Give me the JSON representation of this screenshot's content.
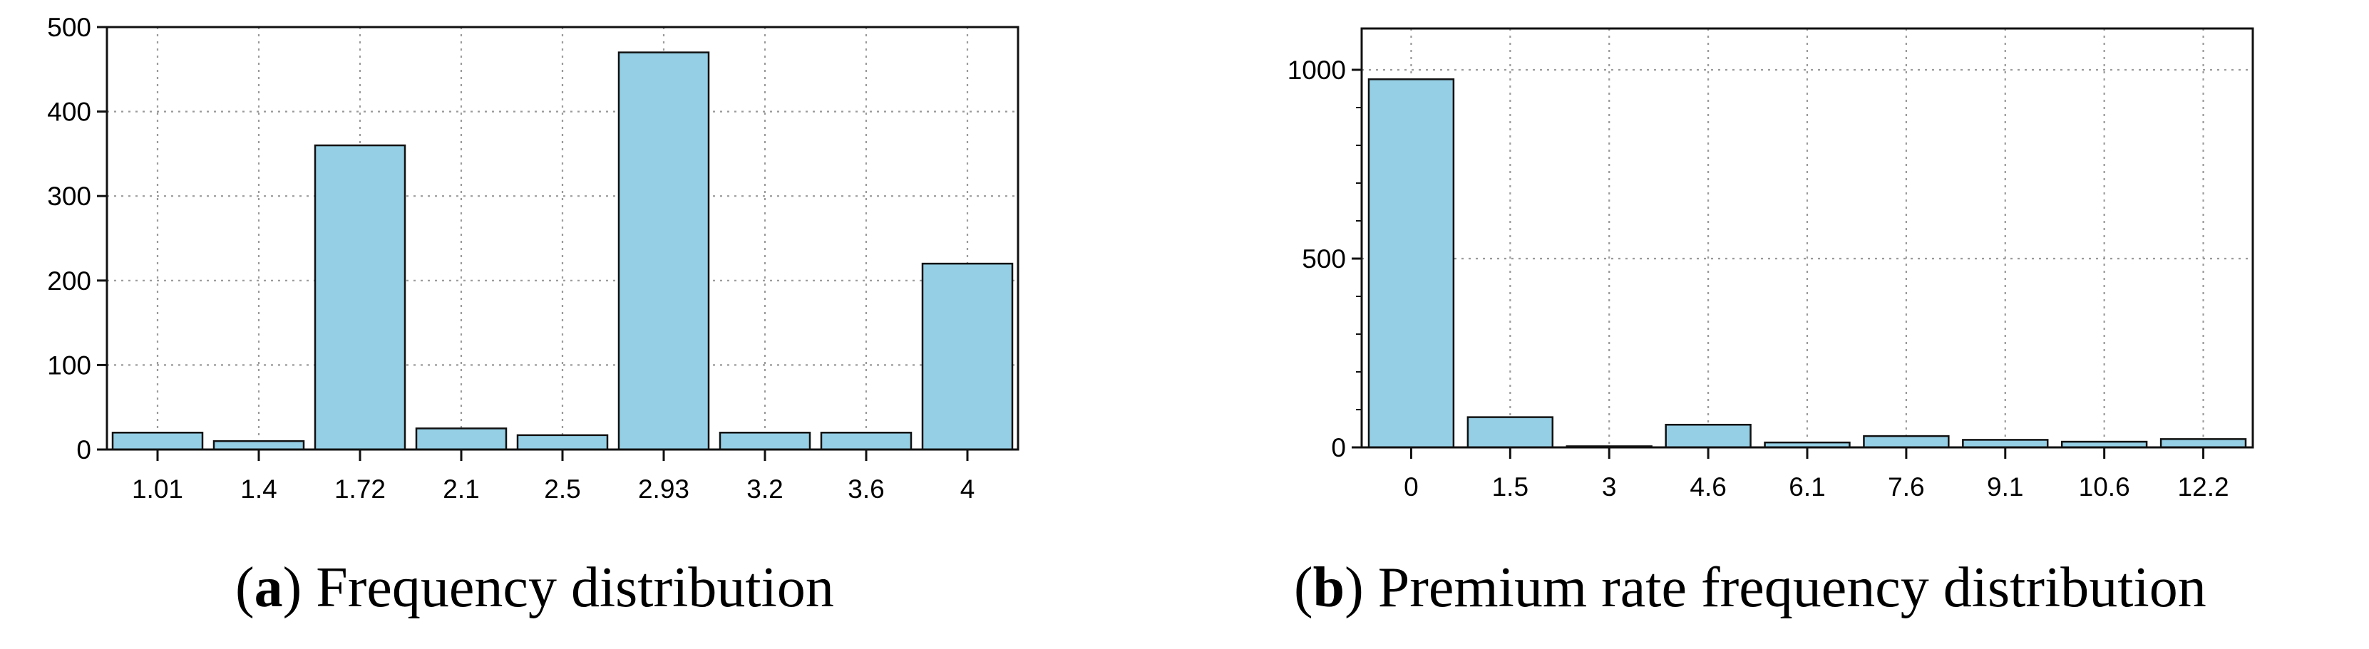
{
  "chart_data": [
    {
      "type": "bar",
      "categories": [
        "1.01",
        "1.4",
        "1.72",
        "2.1",
        "2.5",
        "2.93",
        "3.2",
        "3.6",
        "4"
      ],
      "values": [
        20,
        10,
        360,
        25,
        17,
        470,
        20,
        20,
        220
      ],
      "ylim": [
        0,
        500
      ],
      "yticks": [
        "0",
        "100",
        "200",
        "300",
        "400",
        "500"
      ],
      "ytick_values": [
        0,
        100,
        200,
        300,
        400,
        500
      ],
      "grid": true,
      "bar_color": "#94cfe5",
      "caption_label": "a",
      "caption_text": "Frequency distribution"
    },
    {
      "type": "bar",
      "categories": [
        "0",
        "1.5",
        "3",
        "4.6",
        "6.1",
        "7.6",
        "9.1",
        "10.6",
        "12.2"
      ],
      "values": [
        975,
        80,
        3,
        60,
        13,
        30,
        20,
        15,
        22
      ],
      "ylim": [
        0,
        1000
      ],
      "yticks": [
        "0",
        "500",
        "1000"
      ],
      "ytick_values": [
        0,
        500,
        1000
      ],
      "grid": true,
      "bar_color": "#94cfe5",
      "caption_label": "b",
      "caption_text": "Premium rate frequency distribution"
    }
  ]
}
